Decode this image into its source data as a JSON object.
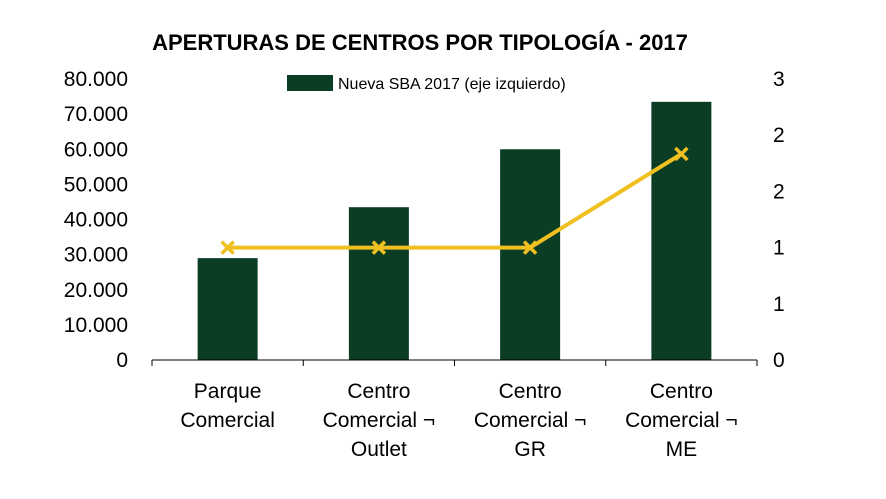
{
  "chart_data": {
    "type": "bar",
    "title": "APERTURAS DE CENTROS POR TIPOLOGÍA - 2017",
    "categories": [
      [
        "Parque",
        "Comercial"
      ],
      [
        "Centro",
        "Comercial ¬",
        "Outlet"
      ],
      [
        "Centro",
        "Comercial ¬",
        "GR"
      ],
      [
        "Centro",
        "Comercial ¬",
        "ME"
      ]
    ],
    "series": [
      {
        "name": "Nueva SBA 2017 (eje izquierdo)",
        "type": "bar",
        "axis": "left",
        "color": "#0b3d24",
        "values": [
          29000,
          43500,
          60000,
          73500
        ]
      },
      {
        "type": "line",
        "axis": "right",
        "color": "#f0c020",
        "marker": "x",
        "values": [
          1.2,
          1.2,
          1.2,
          2.2
        ]
      }
    ],
    "left_axis": {
      "ylim": [
        0,
        80000
      ],
      "ticks": [
        0,
        10000,
        20000,
        30000,
        40000,
        50000,
        60000,
        70000,
        80000
      ],
      "tick_labels": [
        "0",
        "10.000",
        "20.000",
        "30.000",
        "40.000",
        "50.000",
        "60.000",
        "70.000",
        "80.000"
      ]
    },
    "right_axis": {
      "ylim": [
        0,
        3
      ],
      "tick_labels": [
        "0",
        "1",
        "1",
        "2",
        "2",
        "3"
      ]
    },
    "legend": {
      "position": "top"
    },
    "grid": false
  }
}
